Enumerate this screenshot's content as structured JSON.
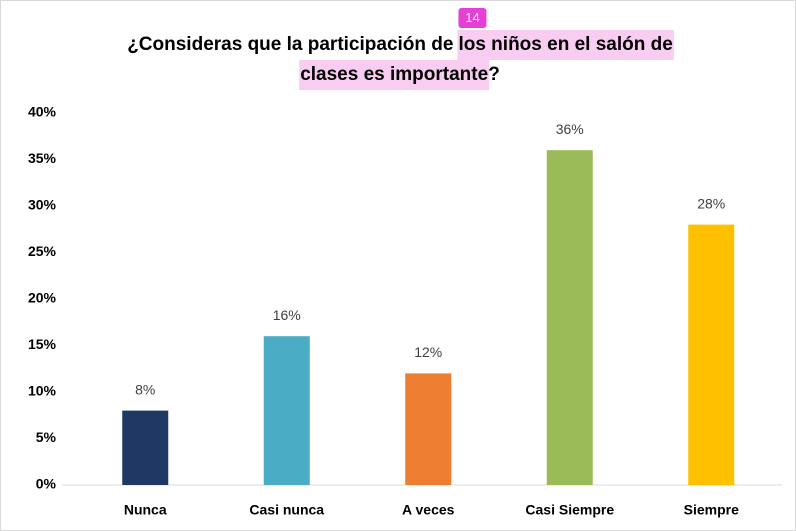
{
  "chart_data": {
    "type": "bar",
    "title": [
      "¿Consideras que la participación de",
      "los niños en el salón de",
      "clases es importante",
      "?"
    ],
    "annotation": "14",
    "categories": [
      "Nunca",
      "Casi nunca",
      "A veces",
      "Casi Siempre",
      "Siempre"
    ],
    "values": [
      8,
      16,
      12,
      36,
      28
    ],
    "value_labels": [
      "8%",
      "16%",
      "12%",
      "36%",
      "28%"
    ],
    "colors": [
      "#1f3864",
      "#4bacc6",
      "#ed7d31",
      "#9bbb59",
      "#ffc000"
    ],
    "ylim": [
      0,
      40
    ],
    "yticks": [
      {
        "value": 0,
        "label": "0%"
      },
      {
        "value": 5,
        "label": "5%"
      },
      {
        "value": 10,
        "label": "10%"
      },
      {
        "value": 15,
        "label": "15%"
      },
      {
        "value": 20,
        "label": "20%"
      },
      {
        "value": 25,
        "label": "25%"
      },
      {
        "value": 30,
        "label": "30%"
      },
      {
        "value": 35,
        "label": "35%"
      },
      {
        "value": 40,
        "label": "40%"
      }
    ],
    "grid": false
  }
}
